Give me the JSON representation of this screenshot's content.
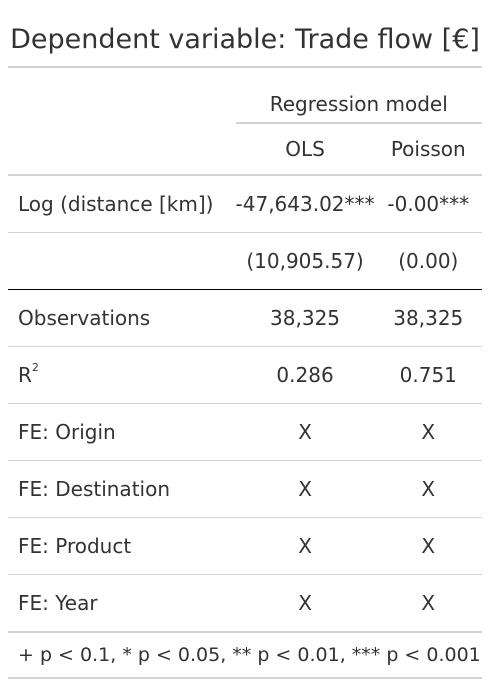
{
  "title": "Dependent variable: Trade flow [€]",
  "spanner": "Regression model",
  "columns": [
    "OLS",
    "Poisson"
  ],
  "rows": [
    {
      "label": "Log (distance [km])",
      "ols": "-47,643.02***",
      "poisson": "-0.00***"
    },
    {
      "label": "",
      "ols": "(10,905.57)",
      "poisson": "(0.00)"
    },
    {
      "label": "Observations",
      "ols": "38,325",
      "poisson": "38,325"
    },
    {
      "label": "R",
      "label_sup": "2",
      "ols": "0.286",
      "poisson": "0.751"
    },
    {
      "label": "FE: Origin",
      "ols": "X",
      "poisson": "X"
    },
    {
      "label": "FE: Destination",
      "ols": "X",
      "poisson": "X"
    },
    {
      "label": "FE: Product",
      "ols": "X",
      "poisson": "X"
    },
    {
      "label": "FE: Year",
      "ols": "X",
      "poisson": "X"
    }
  ],
  "footnote": "+ p < 0.1, * p < 0.05, ** p < 0.01, *** p < 0.001"
}
